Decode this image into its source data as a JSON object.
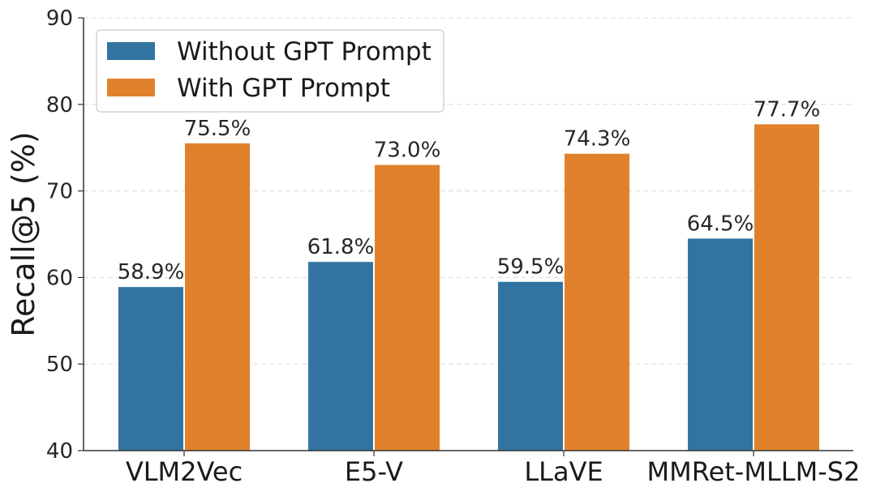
{
  "chart_data": {
    "type": "bar",
    "title": "",
    "xlabel": "",
    "ylabel": "Recall@5 (%)",
    "ylim": [
      40,
      90
    ],
    "yticks": [
      40,
      50,
      60,
      70,
      80,
      90
    ],
    "grid": "horizontal dashed",
    "legend_position": "top-left",
    "categories": [
      "VLM2Vec",
      "E5-V",
      "LLaVE",
      "MMRet-MLLM-S2"
    ],
    "series": [
      {
        "name": "Without GPT Prompt",
        "color": "#3274a1",
        "values": [
          58.9,
          61.8,
          59.5,
          64.5
        ],
        "labels": [
          "58.9%",
          "61.8%",
          "59.5%",
          "64.5%"
        ]
      },
      {
        "name": "With GPT Prompt",
        "color": "#e1812c",
        "values": [
          75.5,
          73.0,
          74.3,
          77.7
        ],
        "labels": [
          "75.5%",
          "73.0%",
          "74.3%",
          "77.7%"
        ]
      }
    ]
  }
}
